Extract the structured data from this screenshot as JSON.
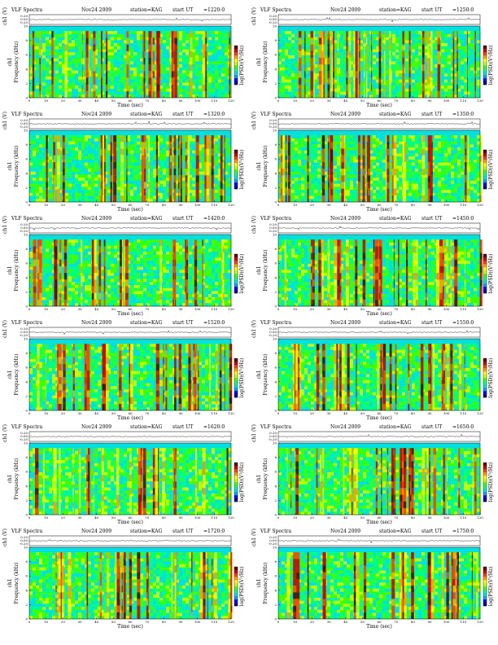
{
  "figure": {
    "title_prefix": "VLF Spectra",
    "date": "Nov24 2009",
    "station": "station=KAG",
    "start_label": "start  UT"
  },
  "labels": {
    "top_ylabel": "ch1 (V)",
    "ylabel_left": "ch1",
    "ylabel_freq": "Frequency (kHz)",
    "xlabel": "Time  (sec)",
    "colorbar": "log(PSD)(V²/Hz)"
  },
  "colors": {
    "scale": [
      "#0000a0",
      "#0000ff",
      "#00a0ff",
      "#00e0e0",
      "#00ff80",
      "#40ff00",
      "#c0ff00",
      "#ffff00",
      "#ffa000",
      "#ff4000",
      "#d00000",
      "#600000"
    ],
    "background": "#ffffff"
  },
  "panels": [
    {
      "ut": "=1220:0"
    },
    {
      "ut": "=1250:0"
    },
    {
      "ut": "=1320:0"
    },
    {
      "ut": "=1350:0"
    },
    {
      "ut": "=1420:0"
    },
    {
      "ut": "=1450:0"
    },
    {
      "ut": "=1520:0"
    },
    {
      "ut": "=1550:0"
    },
    {
      "ut": "=1620:0"
    },
    {
      "ut": "=1650:0"
    },
    {
      "ut": "=1720:0"
    },
    {
      "ut": "=1750:0"
    }
  ],
  "chart_data": {
    "type": "heatmap",
    "panel_count": 12,
    "layout": "6 rows x 2 columns",
    "xlabel": "Time  (sec)",
    "ylabel": "Frequency (kHz)",
    "xlim": [
      0,
      120
    ],
    "ylim": [
      0,
      10
    ],
    "x_ticks": [
      0,
      10,
      20,
      30,
      40,
      50,
      60,
      70,
      80,
      90,
      100,
      110,
      120
    ],
    "y_ticks": [
      0,
      2,
      4,
      6,
      8,
      10
    ],
    "top_ylabel": "ch1 (V)",
    "top_ticks": [
      0.2,
      0.0,
      -0.2
    ],
    "colorbar_label": "log(PSD)(V²/Hz)",
    "notes": "Each panel: dense broadband vertical impulses (red/yellow) over green/cyan background, cyan above ~9.5 kHz"
  }
}
